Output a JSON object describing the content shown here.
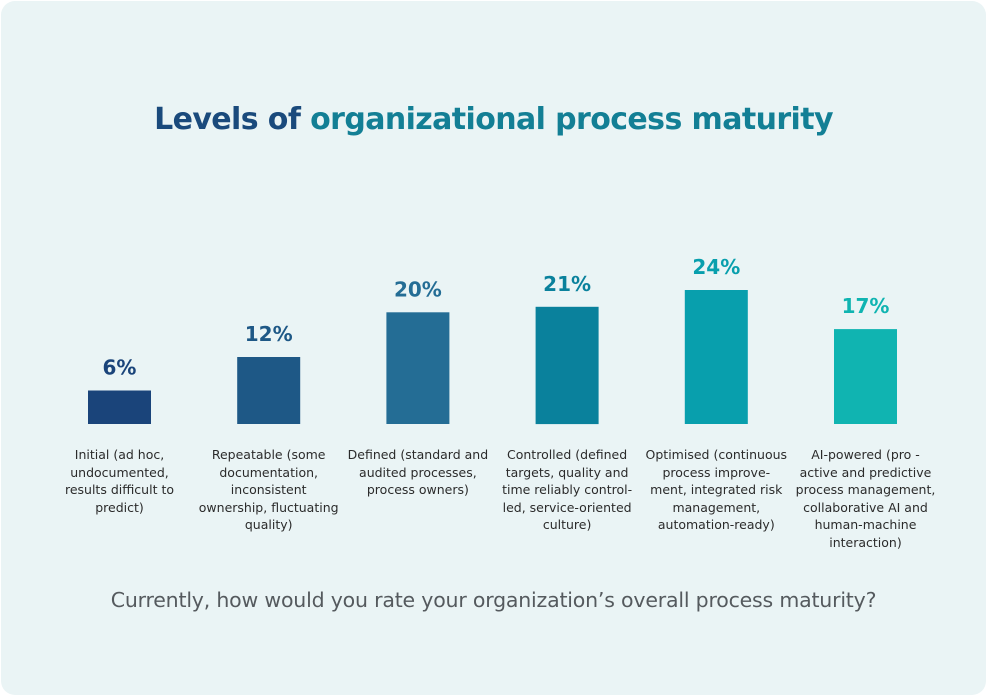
{
  "title": {
    "part1": "Levels of",
    "part2": "organizational process maturity"
  },
  "question": "Currently, how would you rate your organization’s overall process maturity?",
  "chart_data": {
    "type": "bar",
    "categories": [
      "Initial (ad hoc, undocumented, results difficult to predict)",
      "Repeatable (some documentation, inconsistent ownership, fluctuating quality)",
      "Defined (standard and audited processes, process owners)",
      "Controlled (defined targets, quality and time reliably controlled, service-oriented culture)",
      "Optimised (continuous process improvement, integrated risk management, automation-ready)",
      "AI-powered (proactive and predictive process management, collaborative AI and human-machine interaction)"
    ],
    "category_lines": [
      [
        "Initial (ad hoc,",
        "undocumented,",
        "results difficult to",
        "predict)"
      ],
      [
        "Repeatable (some",
        "documentation,",
        "inconsistent",
        "ownership, fluctuating",
        "quality)"
      ],
      [
        "Defined (standard and",
        "audited processes,",
        "process owners)"
      ],
      [
        "Controlled (defined",
        "targets, quality and",
        "time reliably control-",
        "led, service-oriented",
        "culture)"
      ],
      [
        "Optimised (continuous",
        "process improve-",
        "ment, integrated risk",
        "management,",
        "automation-ready)"
      ],
      [
        "AI-powered (pro -",
        "active and predictive",
        "process management,",
        "collaborative AI and",
        "human-machine",
        "interaction)"
      ]
    ],
    "values": [
      6,
      12,
      20,
      21,
      24,
      17
    ],
    "value_labels": [
      "6%",
      "12%",
      "20%",
      "21%",
      "24%",
      "17%"
    ],
    "colors": [
      "#1a447a",
      "#1e5886",
      "#246d95",
      "#0a819c",
      "#089fad",
      "#10b4b1"
    ],
    "label_colors": [
      "#1a447a",
      "#1e5886",
      "#246d95",
      "#0a819c",
      "#089fad",
      "#10b4b1"
    ],
    "ylim": [
      0,
      24
    ]
  }
}
